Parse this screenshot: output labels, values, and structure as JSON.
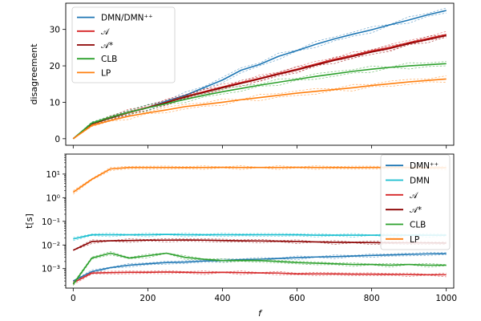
{
  "chart_data": [
    {
      "type": "line",
      "ylabel": "disagreement",
      "xlabel": "",
      "xlim": [
        -20,
        1020
      ],
      "ylim": [
        -1.8,
        37.2
      ],
      "xticks": [
        0,
        200,
        400,
        600,
        800,
        1000
      ],
      "yticks": [
        0,
        10,
        20,
        30
      ],
      "legend_position": "top-left",
      "x": [
        0,
        50,
        100,
        150,
        200,
        250,
        300,
        350,
        400,
        450,
        500,
        550,
        600,
        650,
        700,
        750,
        800,
        850,
        900,
        950,
        1000
      ],
      "series": [
        {
          "name": "DMN/DMN⁺⁺",
          "color": "#1f77b4",
          "dash": "solid",
          "values": [
            0,
            4.3,
            5.7,
            7.2,
            8.6,
            10.3,
            11.9,
            14.0,
            16.1,
            18.8,
            20.4,
            22.6,
            24.2,
            25.9,
            27.4,
            28.7,
            29.9,
            31.3,
            32.6,
            34.0,
            35.2
          ]
        },
        {
          "name": "𝒜",
          "color": "#d62728",
          "dash": "solid",
          "values": [
            0,
            4.1,
            5.8,
            7.3,
            8.6,
            10.0,
            11.6,
            12.9,
            14.2,
            15.4,
            16.6,
            17.9,
            19.1,
            20.5,
            21.8,
            22.9,
            24.1,
            25.1,
            26.4,
            27.5,
            28.6
          ]
        },
        {
          "name": "𝒜*",
          "color": "#8b0000",
          "dash": "solid",
          "values": [
            0,
            4.0,
            5.7,
            7.2,
            8.5,
            9.9,
            11.4,
            12.7,
            14.0,
            15.2,
            16.4,
            17.7,
            18.9,
            20.2,
            21.5,
            22.6,
            23.8,
            24.8,
            26.1,
            27.2,
            28.3
          ]
        },
        {
          "name": "CLB",
          "color": "#2ca02c",
          "dash": "solid",
          "values": [
            0,
            4.3,
            5.9,
            7.3,
            8.5,
            9.6,
            10.8,
            11.9,
            12.9,
            13.8,
            14.7,
            15.5,
            16.3,
            17.1,
            17.8,
            18.5,
            19.1,
            19.6,
            20.0,
            20.3,
            20.6
          ]
        },
        {
          "name": "LP",
          "color": "#ff7f0e",
          "dash": "solid",
          "values": [
            0,
            3.6,
            5.0,
            6.2,
            7.1,
            7.9,
            8.8,
            9.4,
            10.0,
            10.7,
            11.3,
            11.9,
            12.5,
            13.0,
            13.5,
            14.0,
            14.6,
            15.1,
            15.6,
            16.0,
            16.4
          ]
        }
      ]
    },
    {
      "type": "line",
      "ylabel": "t[s]",
      "xlabel": "f",
      "yscale": "log",
      "xlim": [
        -20,
        1020
      ],
      "ylim": [
        0.00015,
        70
      ],
      "xticks": [
        0,
        200,
        400,
        600,
        800,
        1000
      ],
      "ytick_labels": [
        "10⁻³",
        "10⁻²",
        "10⁻¹",
        "10⁰",
        "10¹"
      ],
      "legend_position": "right",
      "x": [
        0,
        50,
        100,
        150,
        200,
        250,
        300,
        350,
        400,
        450,
        500,
        550,
        600,
        650,
        700,
        750,
        800,
        850,
        900,
        950,
        1000
      ],
      "series": [
        {
          "name": "DMN⁺⁺",
          "color": "#1f77b4",
          "dash": "solid",
          "values": [
            0.0003,
            0.00075,
            0.0011,
            0.0014,
            0.0016,
            0.0018,
            0.0019,
            0.0021,
            0.0022,
            0.0024,
            0.0025,
            0.0027,
            0.0029,
            0.0031,
            0.0032,
            0.0034,
            0.0036,
            0.0038,
            0.004,
            0.0042,
            0.0043
          ]
        },
        {
          "name": "DMN",
          "color": "#17becf",
          "dash": "solid",
          "values": [
            0.018,
            0.027,
            0.027,
            0.027,
            0.027,
            0.028,
            0.027,
            0.027,
            0.027,
            0.027,
            0.027,
            0.027,
            0.027,
            0.026,
            0.026,
            0.026,
            0.026,
            0.026,
            0.026,
            0.026,
            0.026
          ]
        },
        {
          "name": "𝒜",
          "color": "#d62728",
          "dash": "solid",
          "values": [
            0.00025,
            0.00065,
            0.00068,
            0.0007,
            0.0007,
            0.00072,
            0.0007,
            0.00068,
            0.0007,
            0.00068,
            0.00066,
            0.00065,
            0.0006,
            0.0006,
            0.0006,
            0.00058,
            0.00058,
            0.00057,
            0.00056,
            0.00055,
            0.00055
          ]
        },
        {
          "name": "𝒜*",
          "color": "#8b0000",
          "dash": "solid",
          "values": [
            0.006,
            0.014,
            0.015,
            0.0155,
            0.016,
            0.016,
            0.0162,
            0.016,
            0.0155,
            0.015,
            0.0148,
            0.0145,
            0.014,
            0.0135,
            0.013,
            0.0128,
            0.0126,
            0.0124,
            0.0123,
            0.0122,
            0.012
          ]
        },
        {
          "name": "CLB",
          "color": "#2ca02c",
          "dash": "solid",
          "values": [
            0.00022,
            0.0028,
            0.0045,
            0.0028,
            0.0035,
            0.0045,
            0.003,
            0.0025,
            0.0022,
            0.0022,
            0.0022,
            0.002,
            0.0018,
            0.0017,
            0.0016,
            0.0015,
            0.0015,
            0.0014,
            0.0015,
            0.0014,
            0.0014
          ]
        },
        {
          "name": "LP",
          "color": "#ff7f0e",
          "dash": "solid",
          "values": [
            1.7,
            6.0,
            16.5,
            19.0,
            19.0,
            19.0,
            18.8,
            19.0,
            19.2,
            19.0,
            19.0,
            19.0,
            19.2,
            19.0,
            19.0,
            18.8,
            19.0,
            19.0,
            19.0,
            18.5,
            18.5
          ]
        }
      ]
    }
  ]
}
